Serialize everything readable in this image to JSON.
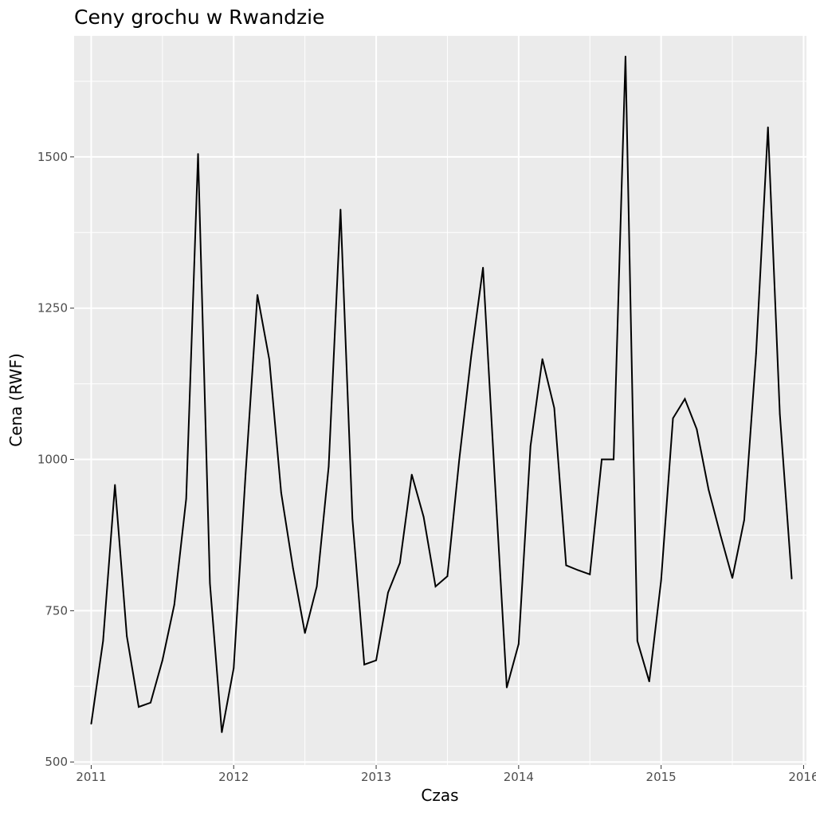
{
  "chart_data": {
    "type": "line",
    "title": "Ceny grochu w Rwandzie",
    "xlabel": "Czas",
    "ylabel": "Cena (RWF)",
    "xlim": [
      2010.88,
      2016.02
    ],
    "ylim": [
      495,
      1700
    ],
    "x_ticks": [
      2011,
      2012,
      2013,
      2014,
      2015,
      2016
    ],
    "x_tick_labels": [
      "2011",
      "2012",
      "2013",
      "2014",
      "2015",
      "2016"
    ],
    "y_ticks": [
      500,
      750,
      1000,
      1250,
      1500
    ],
    "y_tick_labels": [
      "500",
      "750",
      "1000",
      "1250",
      "1500"
    ],
    "grid": true,
    "background": "#ebebeb",
    "line_color": "#000000",
    "series": [
      {
        "x": [
          2011.0,
          2011.0833,
          2011.1667,
          2011.25,
          2011.3333,
          2011.4167,
          2011.5,
          2011.5833,
          2011.6667,
          2011.75,
          2011.8333,
          2011.9167,
          2012.0,
          2012.0833,
          2012.1667,
          2012.25,
          2012.3333,
          2012.4167,
          2012.5,
          2012.5833,
          2012.6667,
          2012.75,
          2012.8333,
          2012.9167,
          2013.0,
          2013.0833,
          2013.1667,
          2013.25,
          2013.3333,
          2013.4167,
          2013.5,
          2013.5833,
          2013.6667,
          2013.75,
          2013.8333,
          2013.9167,
          2014.0,
          2014.0833,
          2014.1667,
          2014.25,
          2014.3333,
          2014.4167,
          2014.5,
          2014.5833,
          2014.6667,
          2014.75,
          2014.8333,
          2014.9167,
          2015.0,
          2015.0833,
          2015.1667,
          2015.25,
          2015.3333,
          2015.4167,
          2015.5,
          2015.5833,
          2015.6667,
          2015.75,
          2015.8333,
          2015.9167
        ],
        "values": [
          563,
          700,
          958,
          708,
          591,
          598,
          668,
          760,
          935,
          1505,
          795,
          549,
          655,
          975,
          1272,
          1165,
          945,
          820,
          713,
          790,
          988,
          1413,
          902,
          661,
          668,
          780,
          829,
          975,
          905,
          790,
          807,
          1000,
          1170,
          1317,
          965,
          623,
          695,
          1022,
          1166,
          1085,
          825,
          817,
          810,
          1000,
          1000,
          1666,
          700,
          633,
          800,
          1068,
          1100,
          1050,
          950,
          875,
          804,
          900,
          1175,
          1549,
          1075,
          803
        ]
      }
    ]
  }
}
